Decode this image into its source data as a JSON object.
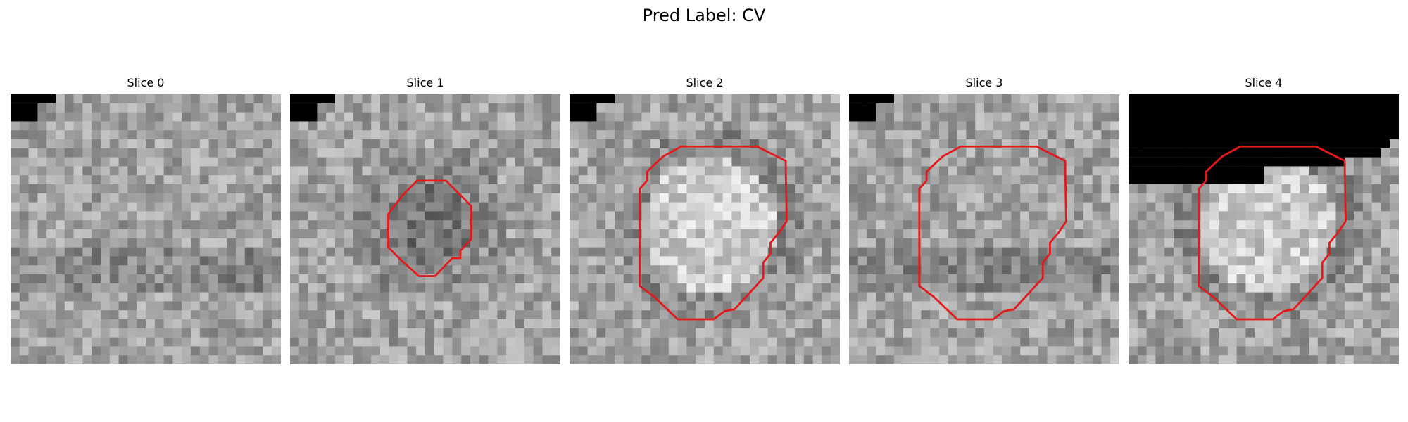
{
  "figure": {
    "title": "Pred Label: CV"
  },
  "panels": [
    {
      "title": "Slice 0",
      "seed": 11,
      "mask": "corner",
      "contour": "none",
      "center_tone": "mid"
    },
    {
      "title": "Slice 1",
      "seed": 23,
      "mask": "corner",
      "contour": "small",
      "center_tone": "dark"
    },
    {
      "title": "Slice 2",
      "seed": 37,
      "mask": "corner",
      "contour": "large",
      "center_tone": "bright"
    },
    {
      "title": "Slice 3",
      "seed": 51,
      "mask": "corner",
      "contour": "large",
      "center_tone": "mid"
    },
    {
      "title": "Slice 4",
      "seed": 67,
      "mask": "top",
      "contour": "large",
      "center_tone": "bright"
    }
  ],
  "colors": {
    "contour": "#e31a1c",
    "mask": "#000000",
    "background": "#ffffff"
  }
}
